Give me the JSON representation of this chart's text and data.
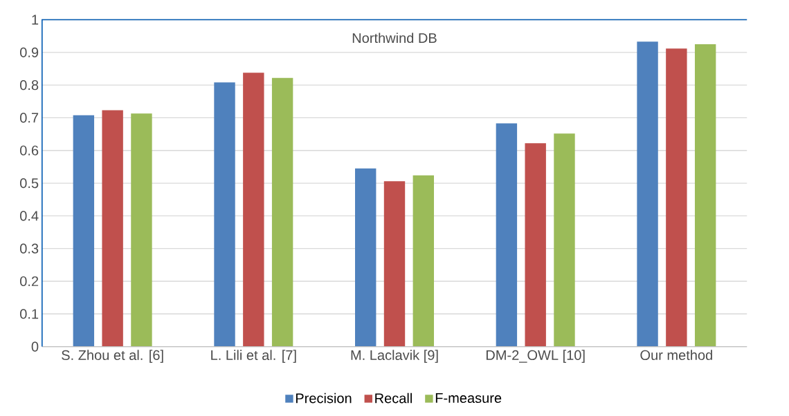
{
  "chart_data": {
    "type": "bar",
    "title": "Northwind DB",
    "categories": [
      "S. Zhou et al. [6]",
      "L. Lili et al. [7]",
      "M. Laclavik [9]",
      "DM-2_OWL [10]",
      "Our method"
    ],
    "series": [
      {
        "name": "Precision",
        "color": "#4f81bd",
        "values": [
          0.708,
          0.808,
          0.545,
          0.683,
          0.933
        ]
      },
      {
        "name": "Recall",
        "color": "#c0504d",
        "values": [
          0.723,
          0.838,
          0.506,
          0.622,
          0.912
        ]
      },
      {
        "name": "F-measure",
        "color": "#9bbb59",
        "values": [
          0.713,
          0.822,
          0.524,
          0.652,
          0.925
        ]
      }
    ],
    "ylim": [
      0,
      1
    ],
    "yticks": [
      0,
      0.1,
      0.2,
      0.3,
      0.4,
      0.5,
      0.6,
      0.7,
      0.8,
      0.9,
      1
    ],
    "grid": "y",
    "legend": "bottom"
  }
}
